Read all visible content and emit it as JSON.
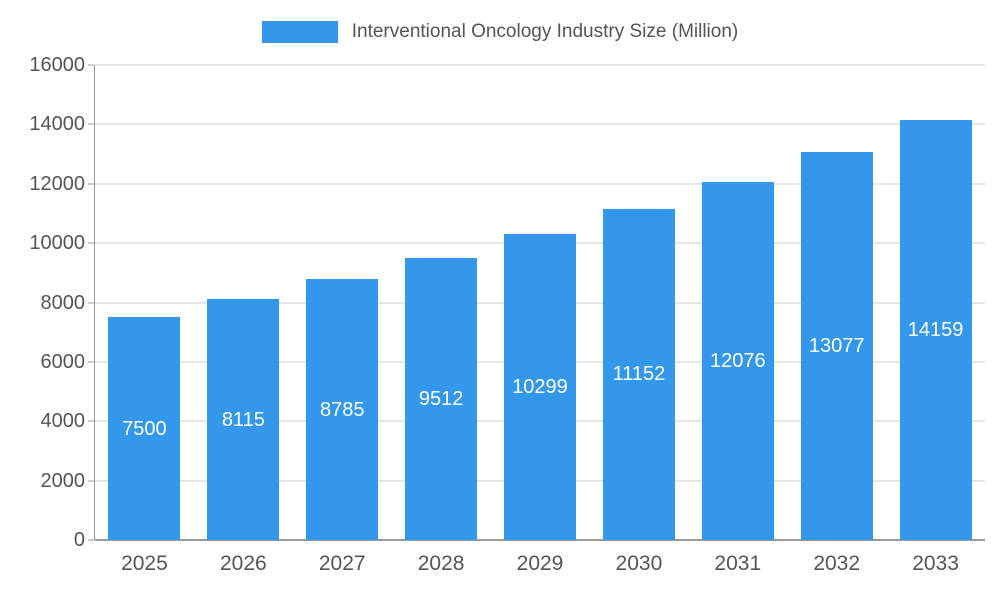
{
  "legend": {
    "label": "Interventional Oncology Industry Size (Million)",
    "swatch_color": "#3398EB"
  },
  "chart_data": {
    "type": "bar",
    "title": "Interventional Oncology Industry Size (Million)",
    "categories": [
      "2025",
      "2026",
      "2027",
      "2028",
      "2029",
      "2030",
      "2031",
      "2032",
      "2033"
    ],
    "values": [
      7500,
      8115,
      8785,
      9512,
      10299,
      11152,
      12076,
      13077,
      14159
    ],
    "xlabel": "",
    "ylabel": "",
    "ylim": [
      0,
      16000
    ],
    "yticks": [
      0,
      2000,
      4000,
      6000,
      8000,
      10000,
      12000,
      14000,
      16000
    ],
    "bar_color": "#3398EB",
    "value_label_color": "#FFFFFF",
    "grid": true,
    "legend_position": "top"
  }
}
